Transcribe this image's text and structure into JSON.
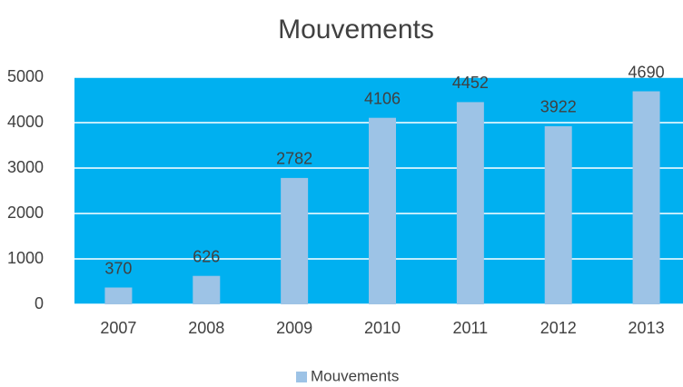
{
  "chart_data": {
    "type": "bar",
    "title": "Mouvements",
    "categories": [
      "2007",
      "2008",
      "2009",
      "2010",
      "2011",
      "2012",
      "2013"
    ],
    "series": [
      {
        "name": "Mouvements",
        "color": "#9dc3e6",
        "values": [
          370,
          626,
          2782,
          4106,
          4452,
          3922,
          4690
        ]
      }
    ],
    "ylim": [
      0,
      5000
    ],
    "yticks": [
      0,
      1000,
      2000,
      3000,
      4000,
      5000
    ],
    "grid": true,
    "plot_background": "#00b0f0",
    "legend": "bottom"
  }
}
